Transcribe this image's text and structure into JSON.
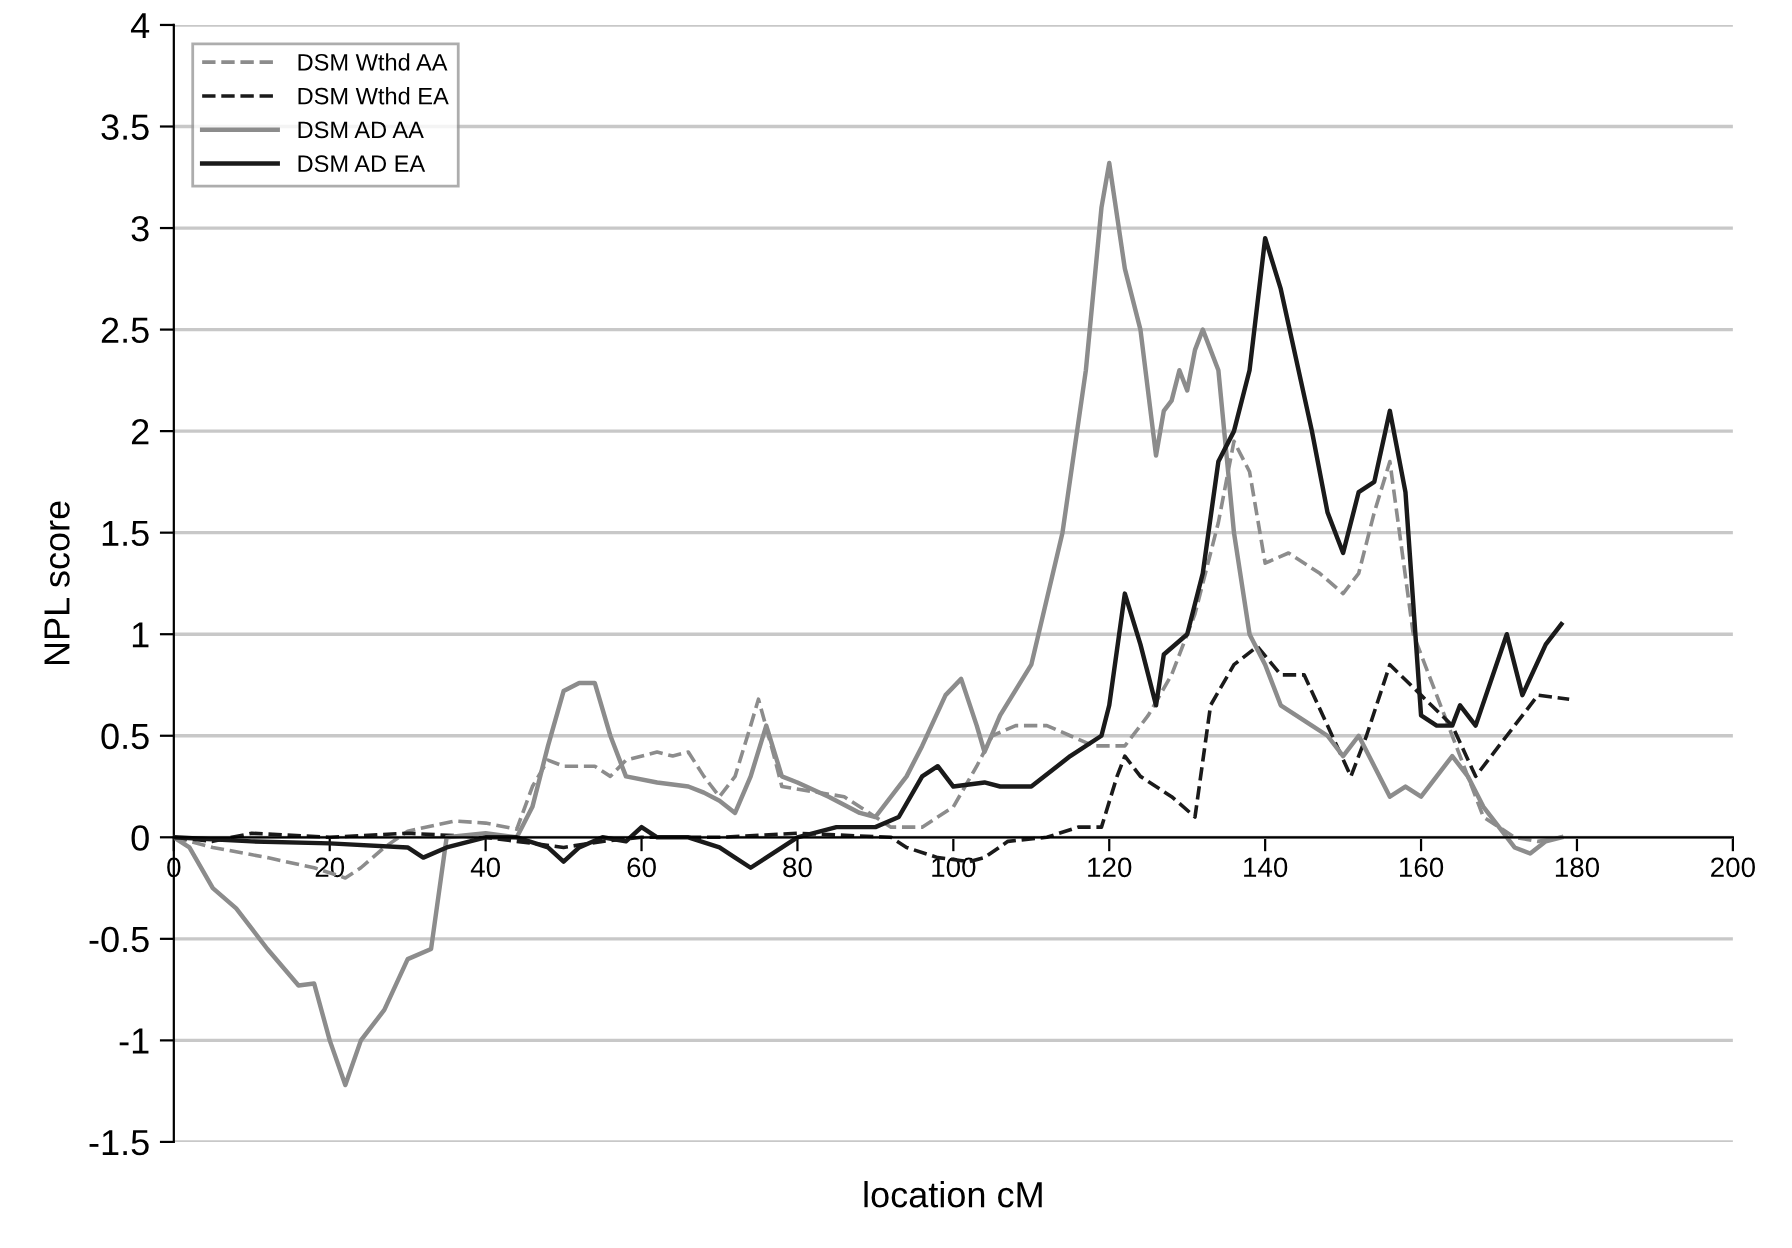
{
  "chart_data": {
    "type": "line",
    "xlabel": "location cM",
    "ylabel": "NPL score",
    "xlim": [
      0,
      200
    ],
    "xticks": [
      0,
      20,
      40,
      60,
      80,
      100,
      120,
      140,
      160,
      180,
      200
    ],
    "ylim": [
      -1.5,
      4
    ],
    "yticks": [
      -1.5,
      -1,
      -0.5,
      0,
      0.5,
      1,
      1.5,
      2,
      2.5,
      3,
      3.5,
      4
    ],
    "grid": "y",
    "legend": "top left",
    "marker": "none",
    "series": [
      {
        "name": "DSM Wthd AA",
        "color": "#8c8c8c",
        "line_style": "dashed",
        "x": [
          0,
          5,
          12,
          18,
          22,
          24,
          27,
          30,
          36,
          40,
          44,
          46,
          48,
          50,
          54,
          56,
          58,
          62,
          64,
          66,
          68,
          70,
          72,
          74,
          75,
          77,
          78,
          86,
          92,
          96,
          100,
          103,
          105,
          108,
          112,
          115,
          118,
          122,
          125,
          128,
          131,
          134,
          136,
          138,
          140,
          143,
          147,
          150,
          152,
          154,
          156,
          159,
          163,
          166,
          168,
          172,
          175,
          178
        ],
        "values": [
          0,
          -0.05,
          -0.1,
          -0.15,
          -0.2,
          -0.15,
          -0.05,
          0.03,
          0.08,
          0.07,
          0.04,
          0.25,
          0.38,
          0.35,
          0.35,
          0.3,
          0.38,
          0.42,
          0.4,
          0.42,
          0.3,
          0.2,
          0.3,
          0.55,
          0.68,
          0.4,
          0.25,
          0.2,
          0.05,
          0.05,
          0.15,
          0.35,
          0.5,
          0.55,
          0.55,
          0.5,
          0.45,
          0.45,
          0.6,
          0.8,
          1.1,
          1.55,
          1.95,
          1.8,
          1.35,
          1.4,
          1.3,
          1.2,
          1.3,
          1.6,
          1.85,
          1.0,
          0.6,
          0.3,
          0.1,
          0,
          -0.02,
          0
        ]
      },
      {
        "name": "DSM Wthd EA",
        "color": "#1a1a1a",
        "line_style": "dashed",
        "x": [
          0,
          5,
          10,
          20,
          30,
          40,
          50,
          55,
          60,
          70,
          80,
          92,
          94,
          98,
          102,
          104,
          107,
          112,
          116,
          119,
          121,
          122,
          124,
          128,
          131,
          133,
          136,
          139,
          142,
          145,
          148,
          151,
          153,
          156,
          160,
          164,
          167,
          171,
          175,
          179
        ],
        "values": [
          0,
          -0.02,
          0.02,
          0,
          0.02,
          0,
          -0.05,
          -0.02,
          0,
          0,
          0.02,
          0,
          -0.05,
          -0.1,
          -0.12,
          -0.1,
          -0.02,
          0,
          0.05,
          0.05,
          0.3,
          0.4,
          0.3,
          0.2,
          0.1,
          0.65,
          0.85,
          0.94,
          0.8,
          0.8,
          0.55,
          0.3,
          0.5,
          0.85,
          0.7,
          0.55,
          0.3,
          0.5,
          0.7,
          0.68
        ]
      },
      {
        "name": "DSM AD AA",
        "color": "#8c8c8c",
        "line_style": "solid",
        "x": [
          0,
          2,
          5,
          8,
          12,
          16,
          18,
          20,
          22,
          24,
          27,
          30,
          33,
          35,
          40,
          44,
          46,
          48,
          50,
          52,
          54,
          56,
          58,
          62,
          66,
          68,
          70,
          72,
          74,
          76,
          78,
          80,
          84,
          88,
          90,
          94,
          96,
          99,
          101,
          103,
          104,
          106,
          110,
          114,
          117,
          119,
          120,
          122,
          124,
          126,
          127,
          128,
          129,
          130,
          131,
          132,
          134,
          136,
          138,
          140,
          142,
          146,
          148,
          150,
          152,
          154,
          156,
          158,
          160,
          162,
          164,
          166,
          168,
          170,
          172,
          174,
          176,
          178
        ],
        "values": [
          0,
          -0.05,
          -0.25,
          -0.35,
          -0.55,
          -0.73,
          -0.72,
          -1.0,
          -1.22,
          -1.0,
          -0.85,
          -0.6,
          -0.55,
          0,
          0.02,
          0,
          0.15,
          0.45,
          0.72,
          0.76,
          0.76,
          0.5,
          0.3,
          0.27,
          0.25,
          0.22,
          0.18,
          0.12,
          0.3,
          0.55,
          0.3,
          0.27,
          0.2,
          0.12,
          0.1,
          0.3,
          0.45,
          0.7,
          0.78,
          0.55,
          0.42,
          0.6,
          0.85,
          1.5,
          2.3,
          3.1,
          3.32,
          2.8,
          2.5,
          1.88,
          2.1,
          2.15,
          2.3,
          2.2,
          2.4,
          2.5,
          2.3,
          1.5,
          1.0,
          0.85,
          0.65,
          0.55,
          0.5,
          0.4,
          0.5,
          0.35,
          0.2,
          0.25,
          0.2,
          0.3,
          0.4,
          0.3,
          0.15,
          0.05,
          -0.05,
          -0.08,
          -0.02,
          0
        ]
      },
      {
        "name": "DSM AD EA",
        "color": "#1a1a1a",
        "line_style": "solid",
        "x": [
          0,
          10,
          20,
          30,
          32,
          35,
          40,
          44,
          48,
          50,
          52,
          55,
          58,
          60,
          62,
          66,
          70,
          72,
          74,
          76,
          80,
          85,
          90,
          93,
          96,
          98,
          100,
          104,
          106,
          110,
          115,
          119,
          120,
          122,
          124,
          126,
          127,
          130,
          132,
          134,
          136,
          138,
          140,
          142,
          146,
          148,
          150,
          152,
          154,
          156,
          158,
          160,
          162,
          164,
          165,
          167,
          171,
          173,
          176,
          178
        ],
        "values": [
          0,
          -0.02,
          -0.03,
          -0.05,
          -0.1,
          -0.05,
          0,
          0,
          -0.05,
          -0.12,
          -0.05,
          0,
          -0.02,
          0.05,
          0,
          0,
          -0.05,
          -0.1,
          -0.15,
          -0.1,
          0,
          0.05,
          0.05,
          0.1,
          0.3,
          0.35,
          0.25,
          0.27,
          0.25,
          0.25,
          0.4,
          0.5,
          0.65,
          1.2,
          0.95,
          0.65,
          0.9,
          1.0,
          1.3,
          1.85,
          2.0,
          2.3,
          2.95,
          2.7,
          2.0,
          1.6,
          1.4,
          1.7,
          1.75,
          2.1,
          1.7,
          0.6,
          0.55,
          0.55,
          0.65,
          0.55,
          1.0,
          0.7,
          0.95,
          1.05
        ]
      }
    ]
  }
}
